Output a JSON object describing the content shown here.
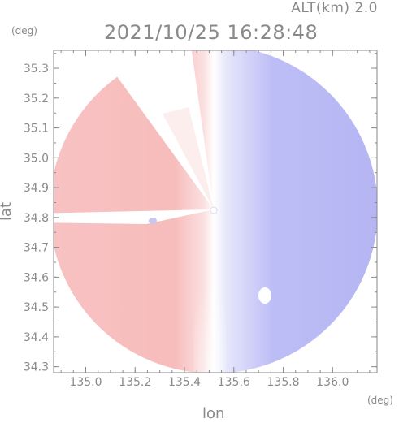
{
  "header": {
    "altitude_label": "ALT(km) 2.0",
    "timestamp": "2021/10/25 16:28:48"
  },
  "chart_data": {
    "type": "heatmap",
    "title": "2021/10/25 16:28:48",
    "subtitle": "ALT(km) 2.0",
    "xlabel": "lon",
    "ylabel": "lat",
    "x_unit": "(deg)",
    "y_unit": "(deg)",
    "xlim": [
      134.87,
      136.18
    ],
    "ylim": [
      34.28,
      35.36
    ],
    "x_ticks": [
      "135.0",
      "135.2",
      "135.4",
      "135.6",
      "135.8",
      "136.0"
    ],
    "y_ticks": [
      "34.3",
      "34.4",
      "34.5",
      "34.6",
      "34.7",
      "34.8",
      "34.9",
      "35.0",
      "35.1",
      "35.2",
      "35.3"
    ],
    "radar_center": {
      "lon": 135.52,
      "lat": 34.82
    },
    "colors": {
      "approaching": "#a9a9f2",
      "receding": "#f5b8b8",
      "near_zero": "#ffffff",
      "axis": "#8a8a8a"
    },
    "grid": false,
    "legend": "none"
  }
}
